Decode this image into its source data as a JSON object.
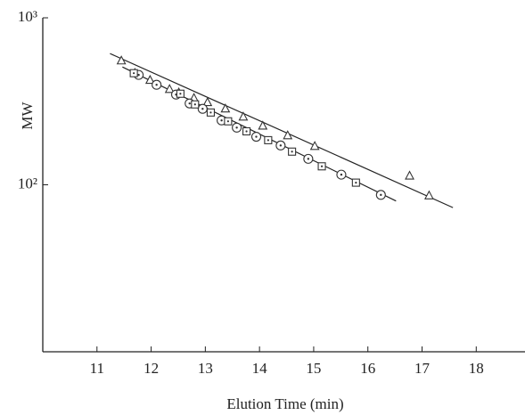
{
  "chart_data": {
    "type": "scatter",
    "x_label": "Elution Time (min)",
    "y_label": "MW",
    "xlim": [
      10,
      18.9
    ],
    "xticks": [
      11,
      12,
      13,
      14,
      15,
      16,
      17,
      18
    ],
    "ylim": [
      10,
      1000
    ],
    "y_log": true,
    "yticks": [
      {
        "value": 100,
        "label": "10²"
      },
      {
        "value": 1000,
        "label": "10³"
      }
    ],
    "series": [
      {
        "marker": "triangle",
        "color": "#333333",
        "x": [
          11.45,
          11.7,
          11.98,
          12.34,
          12.51,
          12.79,
          13.04,
          13.37,
          13.7,
          14.06,
          14.52,
          15.02,
          16.77,
          17.13
        ],
        "values": [
          553,
          466,
          423,
          373,
          356,
          330,
          311,
          285,
          255,
          225,
          197,
          170,
          113,
          86
        ]
      },
      {
        "marker": "circle",
        "color": "#333333",
        "x": [
          11.77,
          12.1,
          12.46,
          12.71,
          12.95,
          13.3,
          13.58,
          13.94,
          14.39,
          14.9,
          15.51,
          16.24
        ],
        "values": [
          455,
          397,
          347,
          307,
          285,
          243,
          220,
          194,
          172,
          143,
          115,
          87
        ]
      },
      {
        "marker": "square",
        "color": "#333333",
        "x": [
          11.68,
          12.54,
          12.81,
          13.1,
          13.42,
          13.76,
          14.16,
          14.6,
          15.15,
          15.78
        ],
        "values": [
          466,
          351,
          303,
          271,
          240,
          209,
          185,
          158,
          129,
          103
        ]
      },
      {
        "marker": "line",
        "color": "#222222",
        "x": [
          11.24,
          17.57
        ],
        "values": [
          611,
          73
        ]
      },
      {
        "marker": "line",
        "color": "#222222",
        "x": [
          11.47,
          16.52
        ],
        "values": [
          508,
          80
        ]
      }
    ]
  }
}
